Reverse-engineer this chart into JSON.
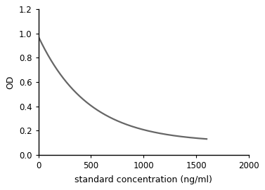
{
  "title": "",
  "xlabel": "standard concentration (ng/ml)",
  "ylabel": "OD",
  "xlim": [
    0,
    2000
  ],
  "ylim": [
    0,
    1.2
  ],
  "xticks": [
    0,
    500,
    1000,
    1500,
    2000
  ],
  "yticks": [
    0,
    0.2,
    0.4,
    0.6,
    0.8,
    1.0,
    1.2
  ],
  "line_color": "#666666",
  "line_width": 1.6,
  "background_color": "#ffffff",
  "axes_background": "#ffffff",
  "curve_x_end": 1600,
  "curve_y_start": 0.975,
  "curve_y_end": 0.13,
  "yinf": 0.1,
  "A": 0.875
}
